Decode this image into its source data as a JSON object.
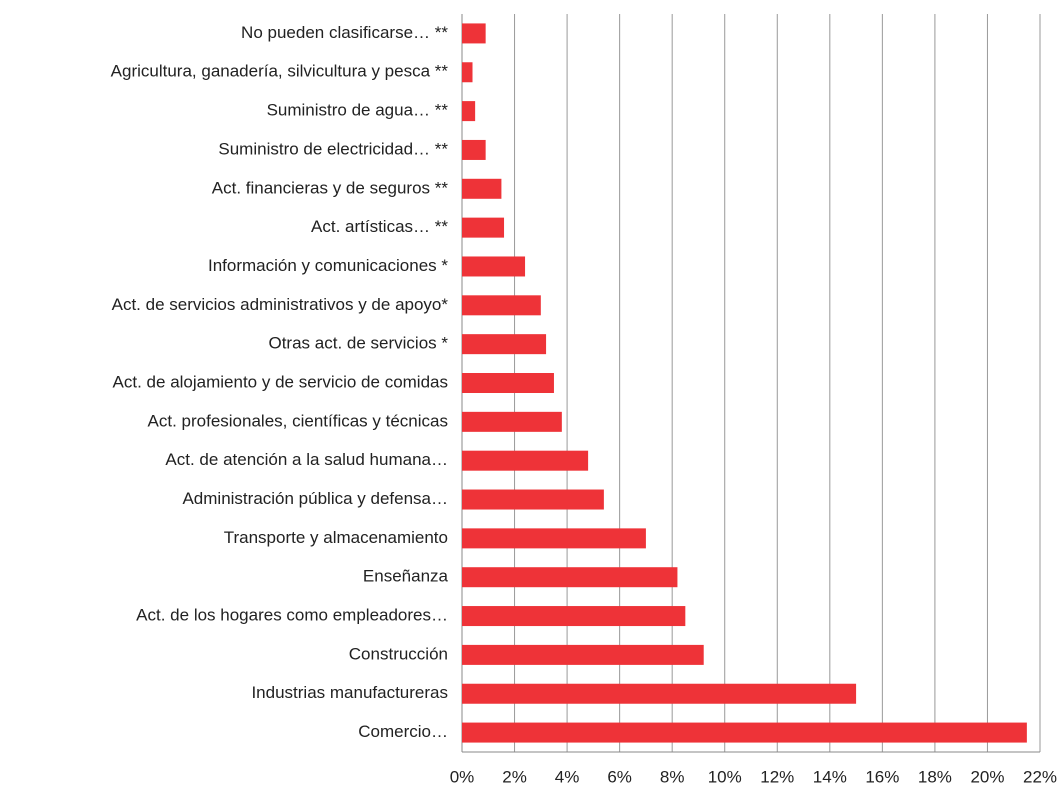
{
  "chart_data": {
    "type": "barh",
    "categories": [
      "No pueden clasificarse… **",
      "Agricultura, ganadería, silvicultura y pesca **",
      "Suministro de agua… **",
      "Suministro de electricidad… **",
      "Act. financieras y de seguros **",
      "Act. artísticas… **",
      "Información y comunicaciones *",
      "Act. de servicios administrativos y de apoyo*",
      "Otras act. de servicios *",
      "Act. de alojamiento y de servicio de comidas",
      "Act. profesionales, científicas y técnicas",
      "Act. de atención a la salud humana…",
      "Administración pública y defensa…",
      "Transporte y almacenamiento",
      "Enseñanza",
      "Act. de los hogares como empleadores…",
      "Construcción",
      "Industrias manufactureras",
      "Comercio…"
    ],
    "values": [
      0.9,
      0.4,
      0.5,
      0.9,
      1.5,
      1.6,
      2.4,
      3.0,
      3.2,
      3.5,
      3.8,
      4.8,
      5.4,
      7.0,
      8.2,
      8.5,
      9.2,
      15.0,
      21.5
    ],
    "color": "#ee3338",
    "xlim": [
      0,
      22
    ],
    "xticks": [
      {
        "value": 0,
        "label": "0%"
      },
      {
        "value": 2,
        "label": "2%"
      },
      {
        "value": 4,
        "label": "4%"
      },
      {
        "value": 6,
        "label": "6%"
      },
      {
        "value": 8,
        "label": "8%"
      },
      {
        "value": 10,
        "label": "10%"
      },
      {
        "value": 12,
        "label": "12%"
      },
      {
        "value": 14,
        "label": "14%"
      },
      {
        "value": 16,
        "label": "16%"
      },
      {
        "value": 18,
        "label": "18%"
      },
      {
        "value": 20,
        "label": "20%"
      },
      {
        "value": 22,
        "label": "22%"
      }
    ],
    "grid": true
  }
}
